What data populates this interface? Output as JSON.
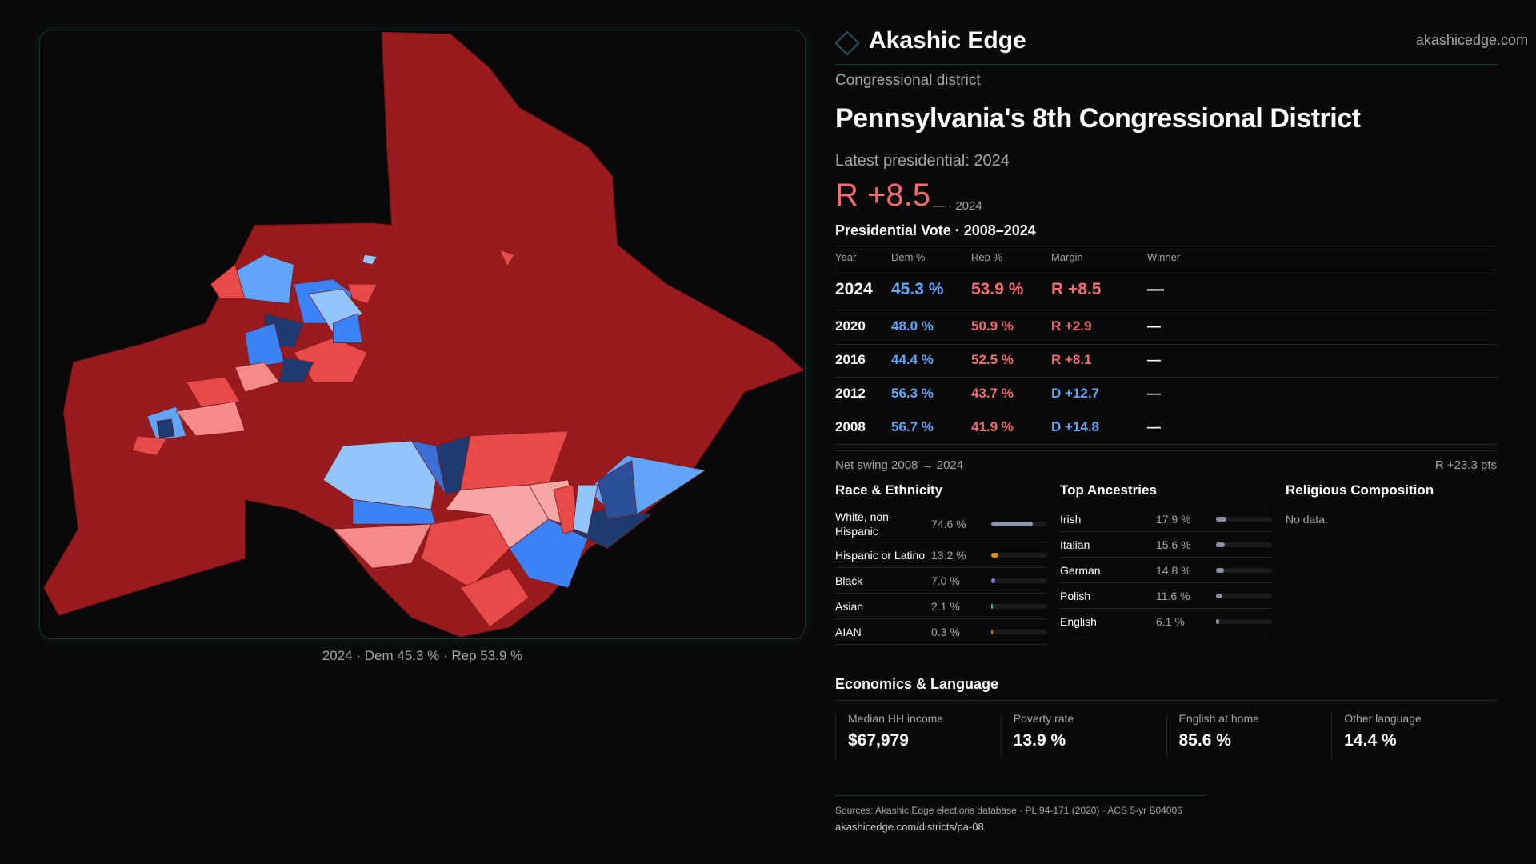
{
  "brand": {
    "name": "Akashic Edge",
    "site": "akashicedge.com"
  },
  "header": {
    "kicker": "Congressional district",
    "title": "Pennsylvania's 8th Congressional District",
    "latest": "Latest presidential: 2024",
    "margin": "R +8.5",
    "margin_sub": "— · 2024"
  },
  "map": {
    "caption": "2024 · Dem 45.3 % · Rep 53.9 %"
  },
  "votes": {
    "title": "Presidential Vote · 2008–2024",
    "headers": [
      "Year",
      "Dem %",
      "Rep %",
      "Margin",
      "Winner"
    ],
    "rows": [
      {
        "year": "2024",
        "dem": "45.3 %",
        "rep": "53.9 %",
        "margin": "R +8.5",
        "winner": "—"
      },
      {
        "year": "2020",
        "dem": "48.0 %",
        "rep": "50.9 %",
        "margin": "R +2.9",
        "winner": "—"
      },
      {
        "year": "2016",
        "dem": "44.4 %",
        "rep": "52.5 %",
        "margin": "R +8.1",
        "winner": "—"
      },
      {
        "year": "2012",
        "dem": "56.3 %",
        "rep": "43.7 %",
        "margin": "D +12.7",
        "winner": "—"
      },
      {
        "year": "2008",
        "dem": "56.7 %",
        "rep": "41.9 %",
        "margin": "D +14.8",
        "winner": "—"
      }
    ],
    "swing_label": "Net swing 2008 → 2024",
    "swing_value": "R +23.3 pts"
  },
  "race": {
    "title": "Race & Ethnicity",
    "items": [
      {
        "label": "White, non-Hispanic",
        "value": "74.6 %",
        "pct": 74.6,
        "color": "#8a96a8"
      },
      {
        "label": "Hispanic or Latino",
        "value": "13.2 %",
        "pct": 13.2,
        "color": "#d98a0b"
      },
      {
        "label": "Black",
        "value": "7.0 %",
        "pct": 7.0,
        "color": "#8b6fe0"
      },
      {
        "label": "Asian",
        "value": "2.1 %",
        "pct": 2.1,
        "color": "#2ec49a"
      },
      {
        "label": "AIAN",
        "value": "0.3 %",
        "pct": 0.3,
        "color": "#d9651b"
      }
    ]
  },
  "ancestry": {
    "title": "Top Ancestries",
    "items": [
      {
        "label": "Irish",
        "value": "17.9 %",
        "pct": 17.9
      },
      {
        "label": "Italian",
        "value": "15.6 %",
        "pct": 15.6
      },
      {
        "label": "German",
        "value": "14.8 %",
        "pct": 14.8
      },
      {
        "label": "Polish",
        "value": "11.6 %",
        "pct": 11.6
      },
      {
        "label": "English",
        "value": "6.1 %",
        "pct": 6.1
      }
    ]
  },
  "religion": {
    "title": "Religious Composition",
    "empty": "No data."
  },
  "econ": {
    "title": "Economics & Language",
    "cards": [
      {
        "label": "Median HH income",
        "value": "$67,979"
      },
      {
        "label": "Poverty rate",
        "value": "13.9 %"
      },
      {
        "label": "English at home",
        "value": "85.6 %"
      },
      {
        "label": "Other language",
        "value": "14.4 %"
      }
    ]
  },
  "footer": {
    "sources": "Sources: Akashic Edge elections database · PL 94-171 (2020) · ACS 5-yr B04006",
    "url": "akashicedge.com/districts/pa-08"
  }
}
